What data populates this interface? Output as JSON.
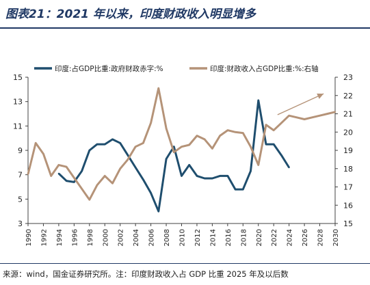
{
  "header": {
    "title": "图表21：2021 年以来，印度财政收入明显增多"
  },
  "footer": {
    "source": "来源：wind，国金证券研究所。注：印度财政收入占 GDP 比重 2025 年及以后数"
  },
  "colors": {
    "deficit": "#1f4e6e",
    "revenue": "#b59378",
    "axis": "#404040",
    "arrow": "#b59378"
  },
  "chart_data": {
    "type": "line",
    "x_ticks": [
      1990,
      1992,
      1994,
      1996,
      1998,
      2000,
      2002,
      2004,
      2006,
      2008,
      2010,
      2012,
      2014,
      2016,
      2018,
      2020,
      2022,
      2024,
      2026,
      2028,
      2030
    ],
    "xlim": [
      1990,
      2030
    ],
    "y_left": {
      "ylim": [
        3,
        15
      ],
      "ticks": [
        3,
        5,
        7,
        9,
        11,
        13,
        15
      ]
    },
    "y_right": {
      "ylim": [
        15,
        23
      ],
      "ticks": [
        15,
        16,
        17,
        18,
        19,
        20,
        21,
        22,
        23
      ]
    },
    "series": [
      {
        "name": "印度:占GDP比重:政府财政赤字:%",
        "axis": "left",
        "x": [
          1994,
          1995,
          1996,
          1997,
          1998,
          1999,
          2000,
          2001,
          2002,
          2003,
          2004,
          2005,
          2006,
          2007,
          2008,
          2009,
          2010,
          2011,
          2012,
          2013,
          2014,
          2015,
          2016,
          2017,
          2018,
          2019,
          2020,
          2021,
          2022,
          2023,
          2024
        ],
        "values": [
          7.1,
          6.5,
          6.4,
          7.3,
          9.0,
          9.5,
          9.5,
          9.9,
          9.6,
          8.6,
          7.6,
          6.6,
          5.5,
          4.0,
          8.3,
          9.3,
          6.9,
          7.8,
          6.9,
          6.7,
          6.7,
          6.9,
          6.9,
          5.8,
          5.8,
          7.3,
          13.1,
          9.5,
          9.5,
          8.6,
          7.6
        ]
      },
      {
        "name": "印度:财政收入占GDP比重:%:右轴",
        "axis": "right",
        "x": [
          1990,
          1991,
          1992,
          1993,
          1994,
          1995,
          1996,
          1997,
          1998,
          1999,
          2000,
          2001,
          2002,
          2003,
          2004,
          2005,
          2006,
          2007,
          2008,
          2009,
          2010,
          2011,
          2012,
          2013,
          2014,
          2015,
          2016,
          2017,
          2018,
          2019,
          2020,
          2021,
          2022,
          2023,
          2024,
          2025,
          2026,
          2027,
          2028,
          2029,
          2030
        ],
        "values": [
          17.7,
          19.4,
          18.8,
          17.6,
          18.2,
          18.1,
          17.5,
          16.9,
          16.3,
          17.1,
          17.6,
          17.2,
          18.0,
          18.5,
          19.2,
          19.4,
          20.5,
          22.4,
          20.2,
          18.9,
          19.2,
          19.3,
          19.8,
          19.6,
          19.1,
          19.8,
          20.1,
          20.0,
          19.95,
          19.2,
          18.2,
          20.4,
          20.1,
          20.5,
          20.9,
          20.8,
          20.7,
          20.8,
          20.9,
          21.0,
          21.1
        ]
      }
    ],
    "annotation": {
      "type": "arrow",
      "from": {
        "x": 2022.5,
        "y_right": 20.95
      },
      "to": {
        "x": 2028.5,
        "y_right": 22.1
      }
    },
    "legend": "top"
  }
}
